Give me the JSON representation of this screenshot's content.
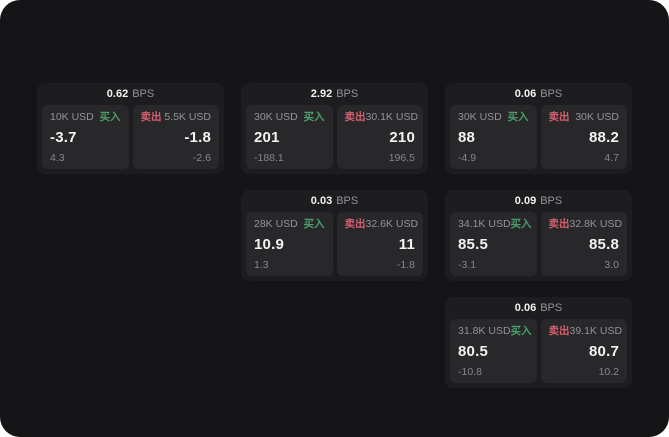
{
  "labels": {
    "bps_unit": "BPS",
    "buy": "买入",
    "sell": "卖出"
  },
  "colors": {
    "background": "#151517",
    "card": "#1d1d1f",
    "panel": "#28282b",
    "buy": "#4a9e6a",
    "sell": "#d25f6e",
    "text_primary": "#f2f2f2",
    "text_muted": "#939398",
    "text_sub": "#86868b"
  },
  "cards": [
    {
      "bps": "0.62",
      "buy": {
        "size": "10K USD",
        "price": "-3.7",
        "sub": "4.3"
      },
      "sell": {
        "size": "5.5K USD",
        "price": "-1.8",
        "sub": "-2.6"
      }
    },
    {
      "bps": "2.92",
      "buy": {
        "size": "30K USD",
        "price": "201",
        "sub": "-188.1"
      },
      "sell": {
        "size": "30.1K USD",
        "price": "210",
        "sub": "196.5"
      }
    },
    {
      "bps": "0.06",
      "buy": {
        "size": "30K USD",
        "price": "88",
        "sub": "-4.9"
      },
      "sell": {
        "size": "30K USD",
        "price": "88.2",
        "sub": "4.7"
      }
    },
    {
      "bps": "0.03",
      "buy": {
        "size": "28K USD",
        "price": "10.9",
        "sub": "1.3"
      },
      "sell": {
        "size": "32.6K USD",
        "price": "11",
        "sub": "-1.8"
      }
    },
    {
      "bps": "0.09",
      "buy": {
        "size": "34.1K USD",
        "price": "85.5",
        "sub": "-3.1"
      },
      "sell": {
        "size": "32.8K USD",
        "price": "85.8",
        "sub": "3.0"
      }
    },
    {
      "bps": "0.06",
      "buy": {
        "size": "31.8K USD",
        "price": "80.5",
        "sub": "-10.8"
      },
      "sell": {
        "size": "39.1K USD",
        "price": "80.7",
        "sub": "10.2"
      }
    }
  ]
}
